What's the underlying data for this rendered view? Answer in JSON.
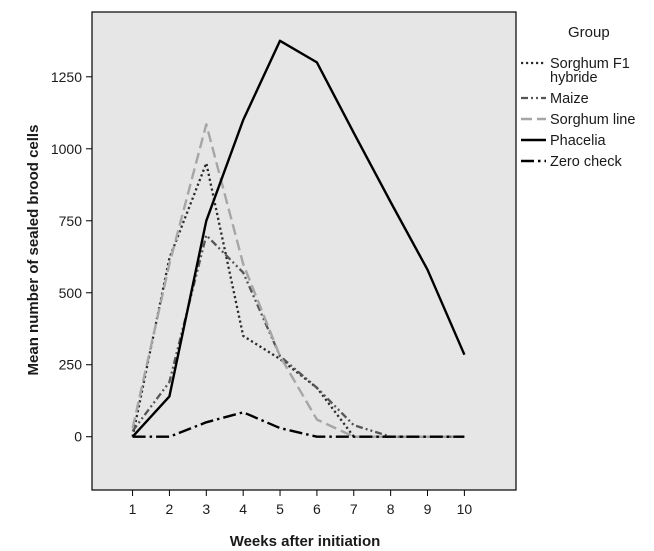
{
  "chart_data": {
    "type": "line",
    "title": "",
    "xlabel": "Weeks after initiation",
    "ylabel": "Mean number of sealed brood cells",
    "x": [
      1,
      2,
      3,
      4,
      5,
      6,
      7,
      8,
      9,
      10
    ],
    "x_ticks": [
      "1",
      "2",
      "3",
      "4",
      "5",
      "6",
      "7",
      "8",
      "9",
      "10"
    ],
    "y_ticks": [
      "0",
      "250",
      "500",
      "750",
      "1000",
      "1250"
    ],
    "y_tick_values": [
      0,
      250,
      500,
      750,
      1000,
      1250
    ],
    "xlim": [
      -0.1,
      11.4
    ],
    "ylim": [
      -185,
      1475
    ],
    "grid": false,
    "background": "#e6e6e6",
    "legend": {
      "title": "Group",
      "placement": "right-outside"
    },
    "series": [
      {
        "name": "Sorghum F1 hybride",
        "legend_lines": [
          "Sorghum F1",
          "hybride"
        ],
        "values": [
          0,
          620,
          950,
          350,
          270,
          170,
          0,
          0,
          0,
          0
        ],
        "color": "#2b2b2b",
        "style": "dotted"
      },
      {
        "name": "Maize",
        "legend_lines": [
          "Maize"
        ],
        "values": [
          20,
          190,
          700,
          570,
          280,
          170,
          40,
          0,
          0,
          0
        ],
        "color": "#555555",
        "style": "dash-dot-dot"
      },
      {
        "name": "Sorghum line",
        "legend_lines": [
          "Sorghum line"
        ],
        "values": [
          30,
          600,
          1085,
          600,
          280,
          60,
          0,
          0,
          0,
          0
        ],
        "color": "#a6a6a6",
        "style": "long-dash"
      },
      {
        "name": "Phacelia",
        "legend_lines": [
          "Phacelia"
        ],
        "values": [
          0,
          140,
          750,
          1100,
          1375,
          1300,
          1055,
          815,
          580,
          285
        ],
        "color": "#000000",
        "style": "solid"
      },
      {
        "name": "Zero check",
        "legend_lines": [
          "Zero check"
        ],
        "values": [
          0,
          0,
          50,
          85,
          30,
          0,
          0,
          0,
          0,
          0
        ],
        "color": "#000000",
        "style": "dash-dot"
      }
    ]
  }
}
